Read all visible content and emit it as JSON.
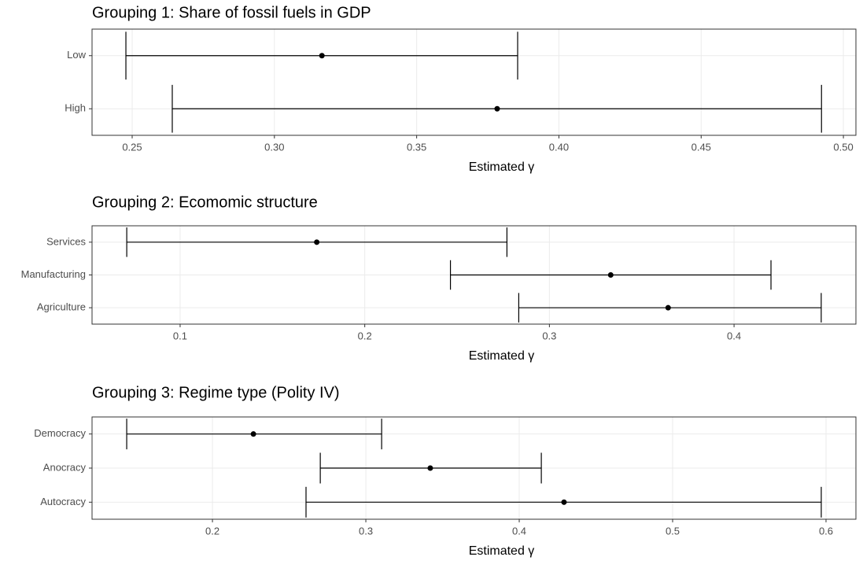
{
  "chart_data": [
    {
      "type": "errorbar",
      "title": "Grouping 1: Share of fossil fuels in GDP",
      "xlabel": "Estimated γ",
      "categories": [
        "Low",
        "High"
      ],
      "values": [
        0.3167,
        0.3783
      ],
      "lower": [
        0.2478,
        0.2641
      ],
      "upper": [
        0.3855,
        0.4923
      ],
      "xlim": [
        0.2359,
        0.5044
      ],
      "xticks": [
        0.25,
        {
          "value": 0.3,
          "label": "0.30"
        },
        0.35,
        {
          "value": 0.4,
          "label": "0.40"
        },
        0.45,
        {
          "value": 0.5,
          "label": "0.50"
        }
      ],
      "grid": true,
      "color": "#000000"
    },
    {
      "type": "errorbar",
      "title": "Grouping 2: Ecomomic structure",
      "xlabel": "Estimated γ",
      "categories": [
        "Services",
        "Manufacturing",
        "Agriculture"
      ],
      "values": [
        0.174,
        0.3332,
        0.3643
      ],
      "lower": [
        0.0711,
        0.2464,
        0.2834
      ],
      "upper": [
        0.277,
        0.42,
        0.4472
      ],
      "xlim": [
        0.0523,
        0.466
      ],
      "xticks": [
        0.1,
        0.2,
        0.3,
        0.4
      ],
      "grid": true,
      "color": "#000000"
    },
    {
      "type": "errorbar",
      "title": "Grouping 3: Regime type (Polity IV)",
      "xlabel": "Estimated γ",
      "categories": [
        "Democracy",
        "Anocracy",
        "Autocracy"
      ],
      "values": [
        0.2267,
        0.342,
        0.4292
      ],
      "lower": [
        0.1441,
        0.2703,
        0.261
      ],
      "upper": [
        0.3103,
        0.4144,
        0.5969
      ],
      "xlim": [
        0.1215,
        0.6195
      ],
      "xticks": [
        0.2,
        0.3,
        0.4,
        0.5,
        0.6
      ],
      "grid": true,
      "color": "#000000"
    }
  ]
}
